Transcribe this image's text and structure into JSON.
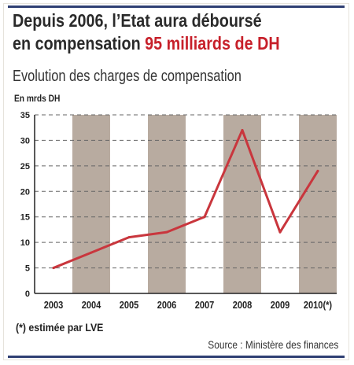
{
  "title": {
    "line1": "Depuis 2006, l’Etat aura déboursé",
    "line2_prefix": "en compensation ",
    "line2_accent": "95 milliards de DH"
  },
  "subtitle": "Evolution des charges de compensation",
  "unit": "En mrds DH",
  "footnote": "(*) estimée par LVE",
  "source": "Source : Ministère des finances",
  "colors": {
    "line": "#c9363d",
    "band_dark": "#b8aba0",
    "band_light": "#ffffff",
    "grid": "#666666",
    "title_accent": "#c7202a",
    "rule": "#2f3f73"
  },
  "chart_data": {
    "type": "line",
    "title": "Evolution des charges de compensation",
    "ylabel": "En mrds DH",
    "xlabel": "",
    "categories": [
      "2003",
      "2004",
      "2005",
      "2006",
      "2007",
      "2008",
      "2009",
      "2010(*)"
    ],
    "series": [
      {
        "values": [
          5,
          8,
          11,
          12,
          15,
          32,
          12,
          24
        ]
      }
    ],
    "ylim": [
      0,
      35
    ],
    "yticks": [
      0,
      5,
      10,
      15,
      20,
      25,
      30,
      35
    ],
    "grid": true
  }
}
